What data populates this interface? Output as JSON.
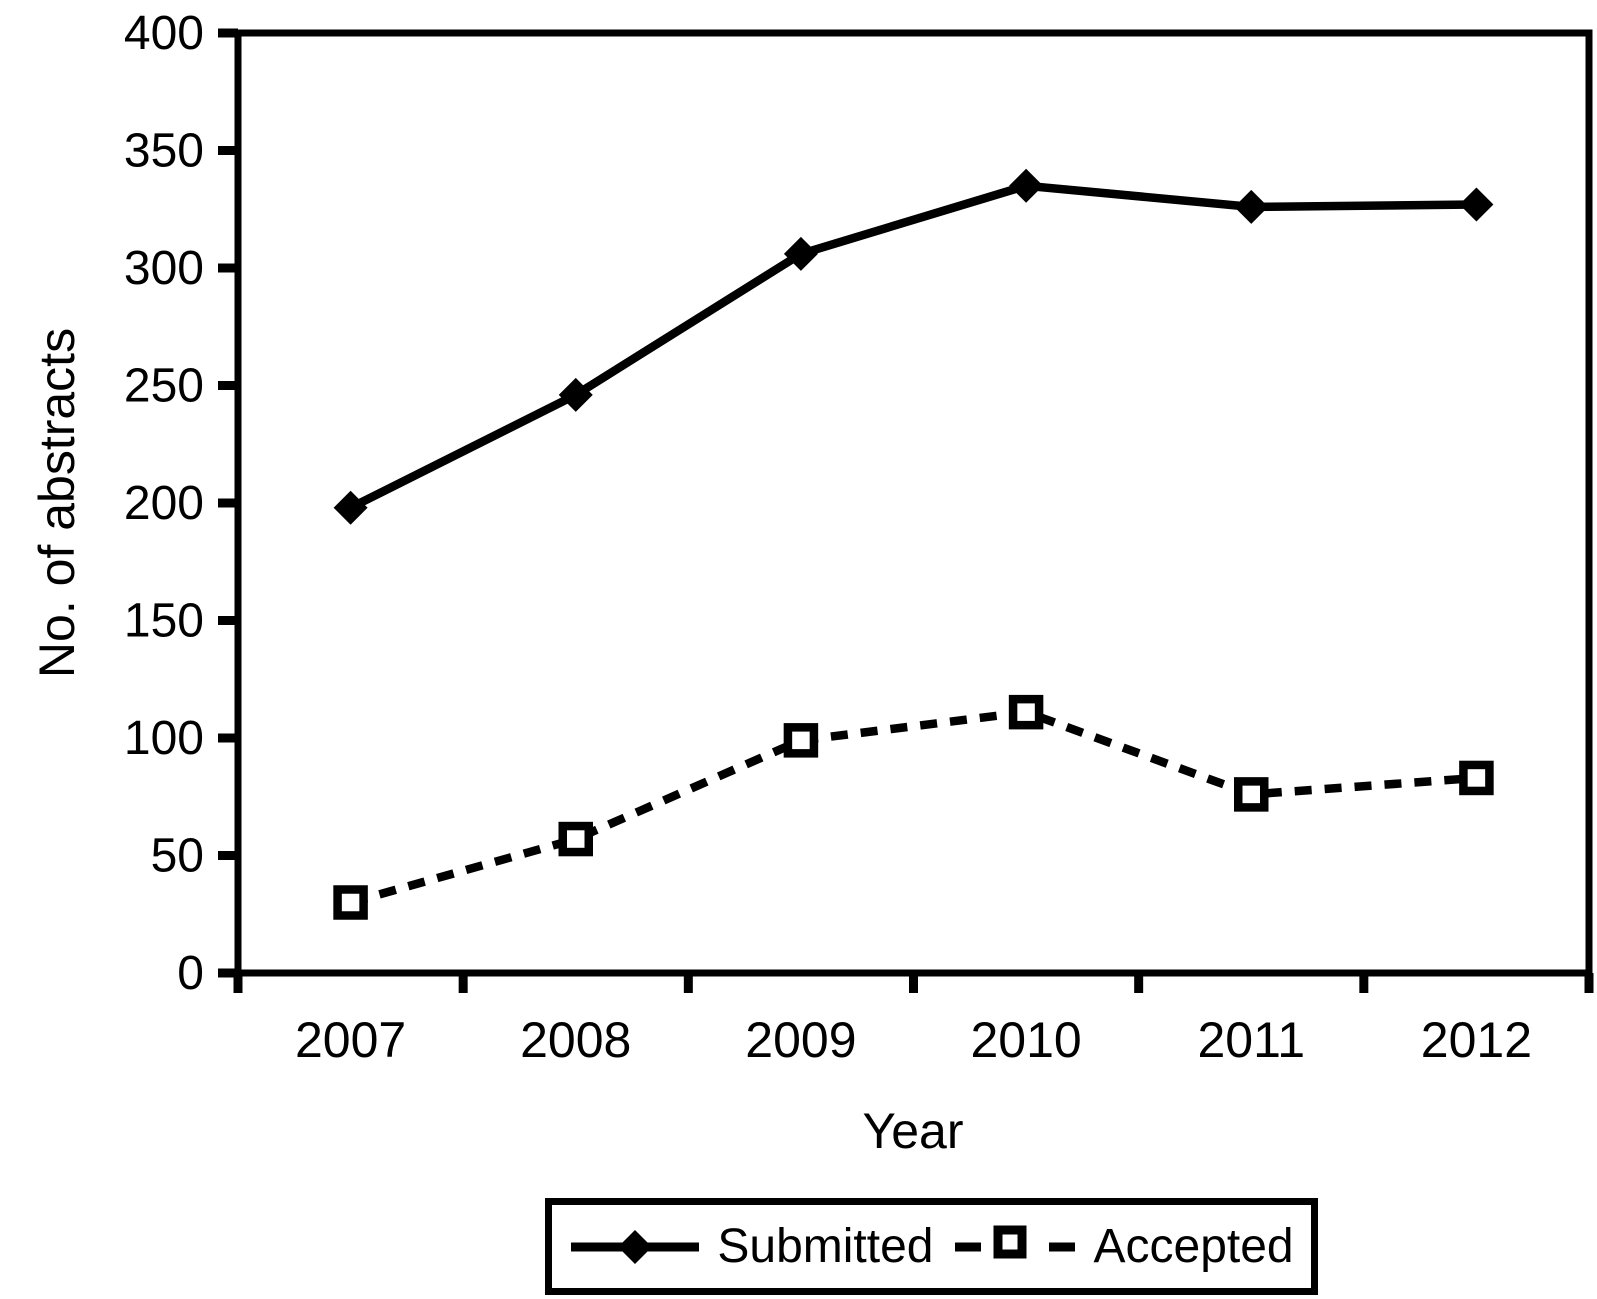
{
  "chart_data": {
    "type": "line",
    "title": "",
    "xlabel": "Year",
    "ylabel": "No. of abstracts",
    "categories": [
      "2007",
      "2008",
      "2009",
      "2010",
      "2011",
      "2012"
    ],
    "series": [
      {
        "name": "Submitted",
        "line_style": "solid",
        "marker": "filled-diamond",
        "values": [
          198,
          246,
          306,
          335,
          326,
          327
        ]
      },
      {
        "name": "Accepted",
        "line_style": "dashed",
        "marker": "open-square",
        "values": [
          30,
          57,
          99,
          111,
          76,
          83
        ]
      }
    ],
    "ylim": [
      0,
      400
    ],
    "ytick_step": 50,
    "y_ticks": [
      0,
      50,
      100,
      150,
      200,
      250,
      300,
      350,
      400
    ],
    "y_tick_labels": [
      "0",
      "50",
      "100",
      "150",
      "200",
      "250",
      "300",
      "350",
      "400"
    ],
    "grid": false,
    "legend_position": "bottom",
    "colors": {
      "line": "#000000",
      "background": "#ffffff"
    }
  }
}
